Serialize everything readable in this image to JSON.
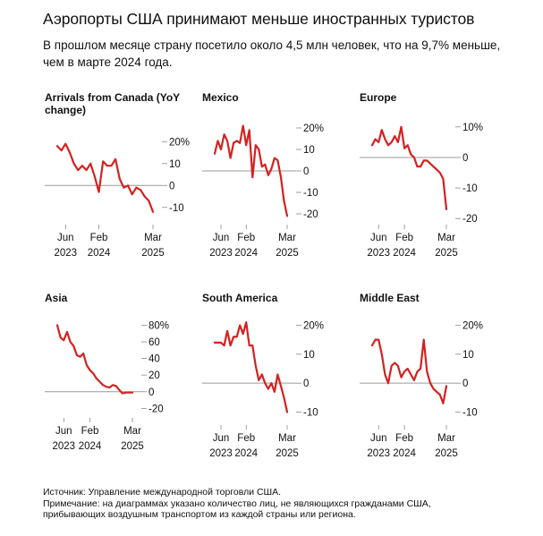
{
  "title": "Аэропорты США принимают меньше иностранных туристов",
  "subtitle": "В прошлом месяце страну посетило около 4,5 млн человек, что на 9,7% меньше, чем в марте 2024 года.",
  "colors": {
    "line": "#d62020",
    "zero_line": "#9a9a9a",
    "text": "#111111",
    "tick": "#888888"
  },
  "x_tick_labels": [
    {
      "month": "Jun",
      "year": "2023"
    },
    {
      "month": "Feb",
      "year": "2024"
    },
    {
      "month": "Mar",
      "year": "2025"
    }
  ],
  "x_tick_dates": [
    "2023-06",
    "2024-02",
    "2025-03"
  ],
  "chart_data": [
    {
      "type": "line",
      "title": "Arrivals from Canada (YoY change)",
      "x": [
        "2023-04",
        "2023-05",
        "2023-06",
        "2023-07",
        "2023-08",
        "2023-09",
        "2023-10",
        "2023-11",
        "2023-12",
        "2024-01",
        "2024-02",
        "2024-03",
        "2024-04",
        "2024-05",
        "2024-06",
        "2024-07",
        "2024-08",
        "2024-09",
        "2024-10",
        "2024-11",
        "2024-12",
        "2025-01",
        "2025-02",
        "2025-03"
      ],
      "series": [
        {
          "values": [
            18,
            16,
            19,
            15,
            10,
            7,
            9,
            7,
            10,
            4,
            -3,
            11,
            9,
            9,
            12,
            3,
            -1,
            0,
            -4,
            -1,
            -2,
            -5,
            -7,
            -12
          ]
        }
      ],
      "ylim": [
        -15,
        25
      ],
      "yticks": [
        20,
        10,
        0,
        -10
      ],
      "ytick_labels": [
        "20%",
        "10",
        "0",
        "-10"
      ]
    },
    {
      "type": "line",
      "title": "Mexico",
      "x": [
        "2023-04",
        "2023-05",
        "2023-06",
        "2023-07",
        "2023-08",
        "2023-09",
        "2023-10",
        "2023-11",
        "2023-12",
        "2024-01",
        "2024-02",
        "2024-03",
        "2024-04",
        "2024-05",
        "2024-06",
        "2024-07",
        "2024-08",
        "2024-09",
        "2024-10",
        "2024-11",
        "2024-12",
        "2025-01",
        "2025-02",
        "2025-03"
      ],
      "series": [
        {
          "values": [
            8,
            14,
            10,
            17,
            14,
            6,
            13,
            14,
            13,
            21,
            12,
            19,
            -3,
            12,
            10,
            2,
            3,
            -2,
            1,
            6,
            5,
            -3,
            -14,
            -21
          ]
        }
      ],
      "ylim": [
        -25,
        25
      ],
      "yticks": [
        20,
        10,
        0,
        -10,
        -20
      ],
      "ytick_labels": [
        "20%",
        "10",
        "0",
        "-10",
        "-20"
      ]
    },
    {
      "type": "line",
      "title": "Europe",
      "x": [
        "2023-04",
        "2023-05",
        "2023-06",
        "2023-07",
        "2023-08",
        "2023-09",
        "2023-10",
        "2023-11",
        "2023-12",
        "2024-01",
        "2024-02",
        "2024-03",
        "2024-04",
        "2024-05",
        "2024-06",
        "2024-07",
        "2024-08",
        "2024-09",
        "2024-10",
        "2024-11",
        "2024-12",
        "2025-01",
        "2025-02",
        "2025-03"
      ],
      "series": [
        {
          "values": [
            4,
            6,
            5,
            9,
            6,
            4,
            5,
            7,
            5,
            10,
            3,
            4,
            1,
            0,
            -3,
            -3,
            -1,
            -1,
            -2,
            -3,
            -4,
            -5,
            -7,
            -17
          ]
        }
      ],
      "ylim": [
        -22,
        12
      ],
      "yticks": [
        10,
        0,
        -10,
        -20
      ],
      "ytick_labels": [
        "10%",
        "0",
        "-10",
        "-20"
      ]
    },
    {
      "type": "line",
      "title": "Asia",
      "x": [
        "2023-04",
        "2023-05",
        "2023-06",
        "2023-07",
        "2023-08",
        "2023-09",
        "2023-10",
        "2023-11",
        "2023-12",
        "2024-01",
        "2024-02",
        "2024-03",
        "2024-04",
        "2024-05",
        "2024-06",
        "2024-07",
        "2024-08",
        "2024-09",
        "2024-10",
        "2024-11",
        "2024-12",
        "2025-01",
        "2025-02",
        "2025-03"
      ],
      "series": [
        {
          "values": [
            80,
            65,
            62,
            72,
            60,
            55,
            44,
            42,
            46,
            32,
            26,
            22,
            16,
            12,
            8,
            6,
            5,
            8,
            7,
            2,
            -2,
            -1,
            -1,
            -1
          ]
        }
      ],
      "ylim": [
        -25,
        88
      ],
      "yticks": [
        80,
        60,
        40,
        20,
        0,
        -20
      ],
      "ytick_labels": [
        "80%",
        "60",
        "40",
        "20",
        "0",
        "-20"
      ]
    },
    {
      "type": "line",
      "title": "South America",
      "x": [
        "2023-04",
        "2023-05",
        "2023-06",
        "2023-07",
        "2023-08",
        "2023-09",
        "2023-10",
        "2023-11",
        "2023-12",
        "2024-01",
        "2024-02",
        "2024-03",
        "2024-04",
        "2024-05",
        "2024-06",
        "2024-07",
        "2024-08",
        "2024-09",
        "2024-10",
        "2024-11",
        "2024-12",
        "2025-01",
        "2025-02",
        "2025-03"
      ],
      "series": [
        {
          "values": [
            14,
            14,
            14,
            13,
            18,
            13,
            16,
            16,
            20,
            17,
            21,
            13,
            13,
            6,
            1,
            3,
            0,
            -2,
            0,
            -3,
            3,
            -1,
            -5,
            -10
          ]
        }
      ],
      "ylim": [
        -12,
        22
      ],
      "yticks": [
        20,
        10,
        0,
        -10
      ],
      "ytick_labels": [
        "20%",
        "10",
        "0",
        "-10"
      ]
    },
    {
      "type": "line",
      "title": "Middle East",
      "x": [
        "2023-04",
        "2023-05",
        "2023-06",
        "2023-07",
        "2023-08",
        "2023-09",
        "2023-10",
        "2023-11",
        "2023-12",
        "2024-01",
        "2024-02",
        "2024-03",
        "2024-04",
        "2024-05",
        "2024-06",
        "2024-07",
        "2024-08",
        "2024-09",
        "2024-10",
        "2024-11",
        "2024-12",
        "2025-01",
        "2025-02",
        "2025-03"
      ],
      "series": [
        {
          "values": [
            13,
            15,
            15,
            10,
            3,
            0,
            6,
            7,
            6,
            2,
            4,
            5,
            3,
            1,
            4,
            5,
            15,
            4,
            0,
            -2,
            -3,
            -4,
            -7,
            -1
          ]
        }
      ],
      "ylim": [
        -12,
        22
      ],
      "yticks": [
        20,
        10,
        0,
        -10
      ],
      "ytick_labels": [
        "20%",
        "10",
        "0",
        "-10"
      ]
    }
  ],
  "footer": {
    "source": "Источник: Управление международной торговли США.",
    "note_line1": "Примечание: на диаграммах указано количество лиц, не являющихся гражданами США,",
    "note_line2": "прибывающих воздушным транспортом из каждой страны или региона."
  }
}
